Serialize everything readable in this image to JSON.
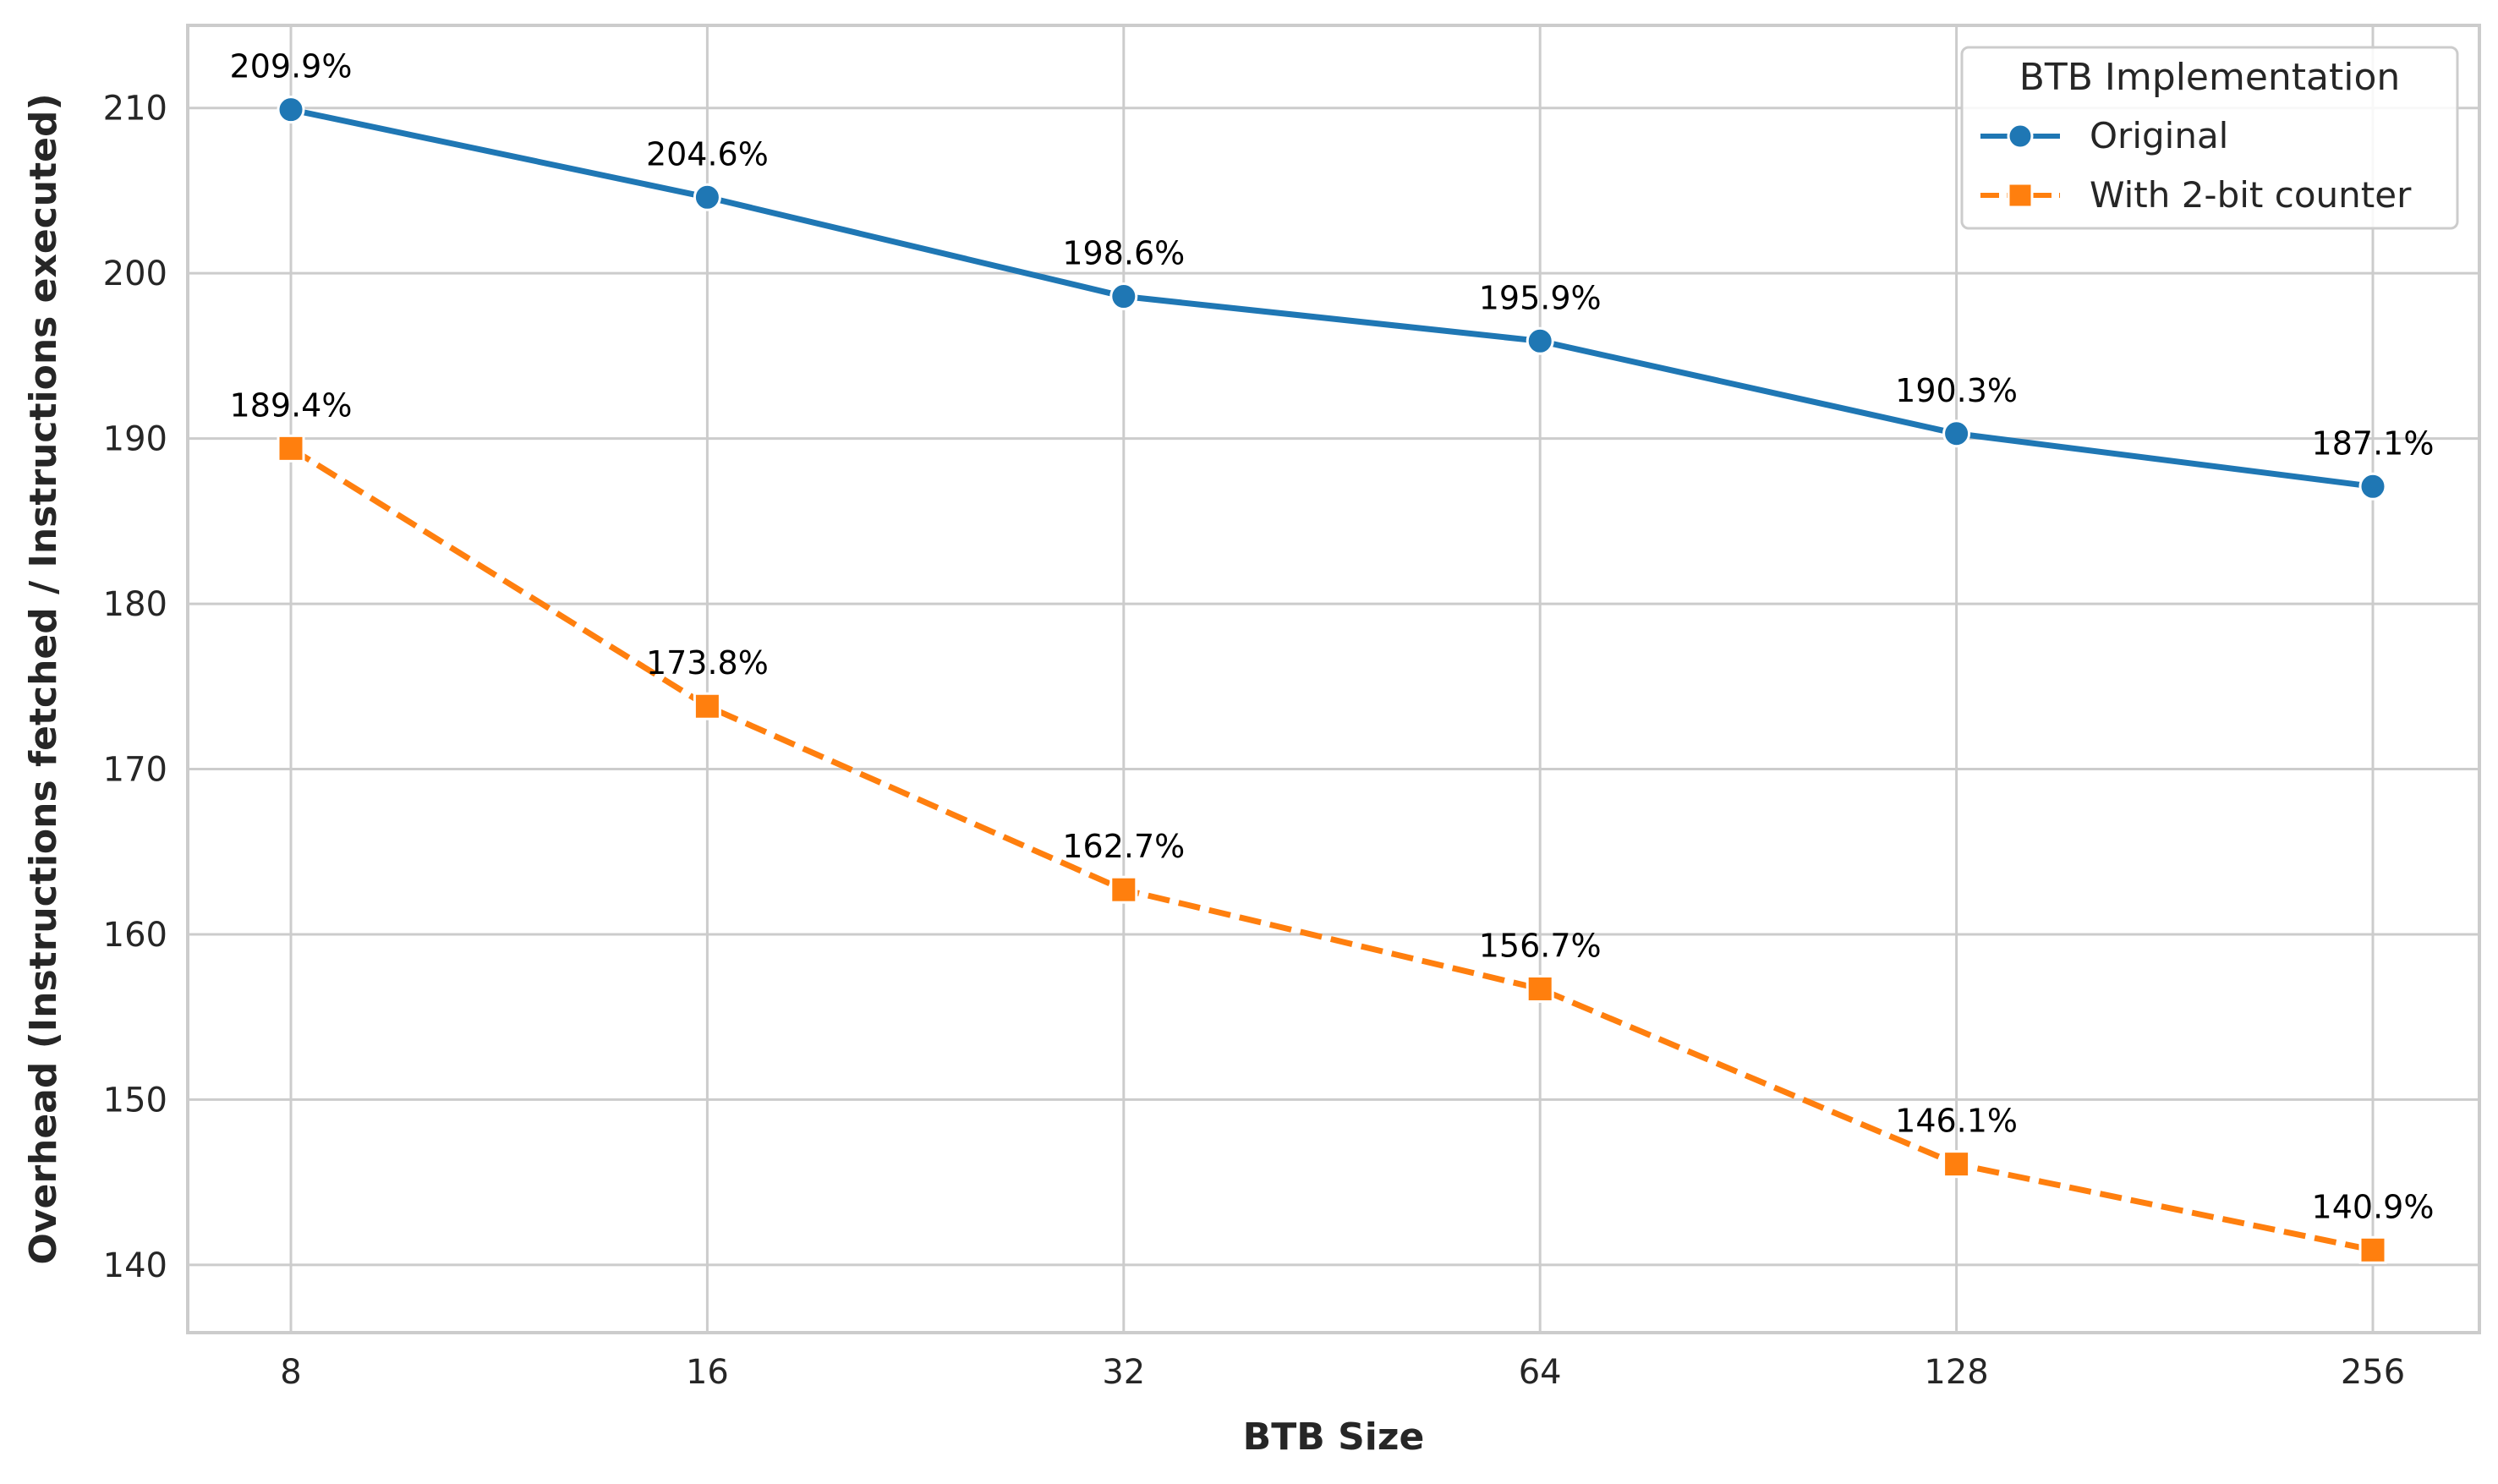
{
  "chart_data": {
    "type": "line",
    "title": "",
    "xlabel": "BTB Size",
    "ylabel": "Overhead (Instructions fetched / Instructions executed)",
    "categories": [
      "8",
      "16",
      "32",
      "64",
      "128",
      "256"
    ],
    "ylim": [
      135.9,
      215.0
    ],
    "yticks": [
      140,
      150,
      160,
      170,
      180,
      190,
      200,
      210
    ],
    "grid": true,
    "legend": {
      "title": "BTB Implementation",
      "placement": "top-right"
    },
    "series": [
      {
        "name": "Original",
        "color": "#1f77b4",
        "marker": "circle",
        "linestyle": "solid",
        "values": [
          209.9,
          204.6,
          198.6,
          195.9,
          190.3,
          187.1
        ],
        "labels": [
          "209.9%",
          "204.6%",
          "198.6%",
          "195.9%",
          "190.3%",
          "187.1%"
        ]
      },
      {
        "name": "With 2-bit counter",
        "color": "#ff7f0e",
        "marker": "square",
        "linestyle": "dashed",
        "values": [
          189.4,
          173.8,
          162.7,
          156.7,
          146.1,
          140.9
        ],
        "labels": [
          "189.4%",
          "173.8%",
          "162.7%",
          "156.7%",
          "146.1%",
          "140.9%"
        ]
      }
    ]
  }
}
